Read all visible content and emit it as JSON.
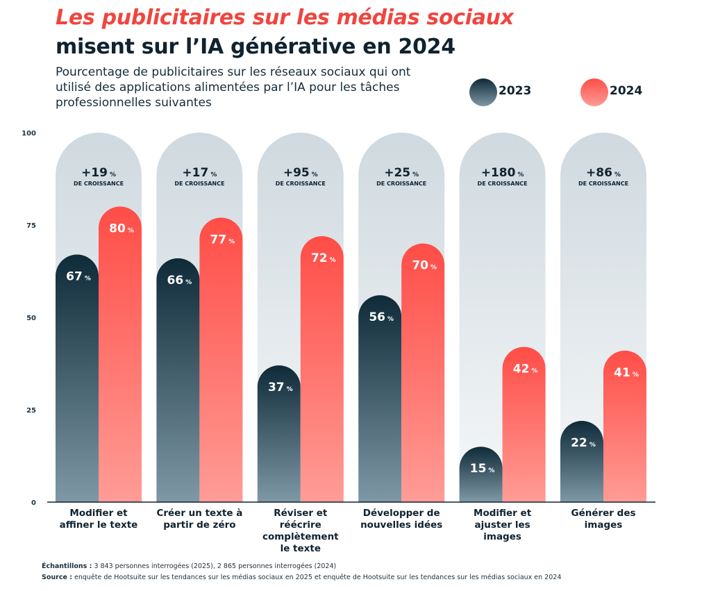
{
  "title_line1": "Les publicitaires sur les médias sociaux",
  "title_line2": "misent sur l’IA générative en 2024",
  "subtitle": "Pourcentage de publicitaires sur les réseaux sociaux qui ont utilisé des applications alimentées par l’IA pour les tâches professionnelles suivantes",
  "colors": {
    "title_accent": "#f0453f",
    "series_2023": [
      "#0f2a38",
      "#7e98a6"
    ],
    "series_2024": [
      "#ff4d47",
      "#ff9c96"
    ],
    "panel": [
      "#cfd9df",
      "#f6f8f9"
    ]
  },
  "chart_data": {
    "type": "bar",
    "ylim": [
      0,
      100
    ],
    "yticks": [
      "0",
      "25",
      "50",
      "75",
      "100"
    ],
    "grid": false,
    "legend_position": "top-right",
    "categories": [
      [
        "Modifier et",
        "affiner le texte"
      ],
      [
        "Créer un texte à",
        "partir de zéro"
      ],
      [
        "Réviser et",
        "réécrire",
        "complètement",
        "le texte"
      ],
      [
        "Développer de",
        "nouvelles idées"
      ],
      [
        "Modifier et",
        "ajuster les",
        "images"
      ],
      [
        "Générer des",
        "images"
      ]
    ],
    "series": [
      {
        "name": "2023",
        "values": [
          67,
          66,
          37,
          56,
          15,
          22
        ]
      },
      {
        "name": "2024",
        "values": [
          80,
          77,
          72,
          70,
          42,
          41
        ]
      }
    ],
    "value_suffix": "%",
    "growth": [
      "+19",
      "+17",
      "+95",
      "+25",
      "+180",
      "+86"
    ],
    "growth_suffix": "%",
    "growth_label": "DE CROISSANCE"
  },
  "footer": {
    "samples_label": "Échantillons :",
    "samples_text": " 3 843 personnes interrogées (2025), 2 865 personnes interrogées (2024)",
    "source_label": "Source :",
    "source_text": " enquête de Hootsuite sur les tendances sur les médias sociaux en 2025 et enquête de Hootsuite sur les tendances sur les médias sociaux en 2024"
  }
}
